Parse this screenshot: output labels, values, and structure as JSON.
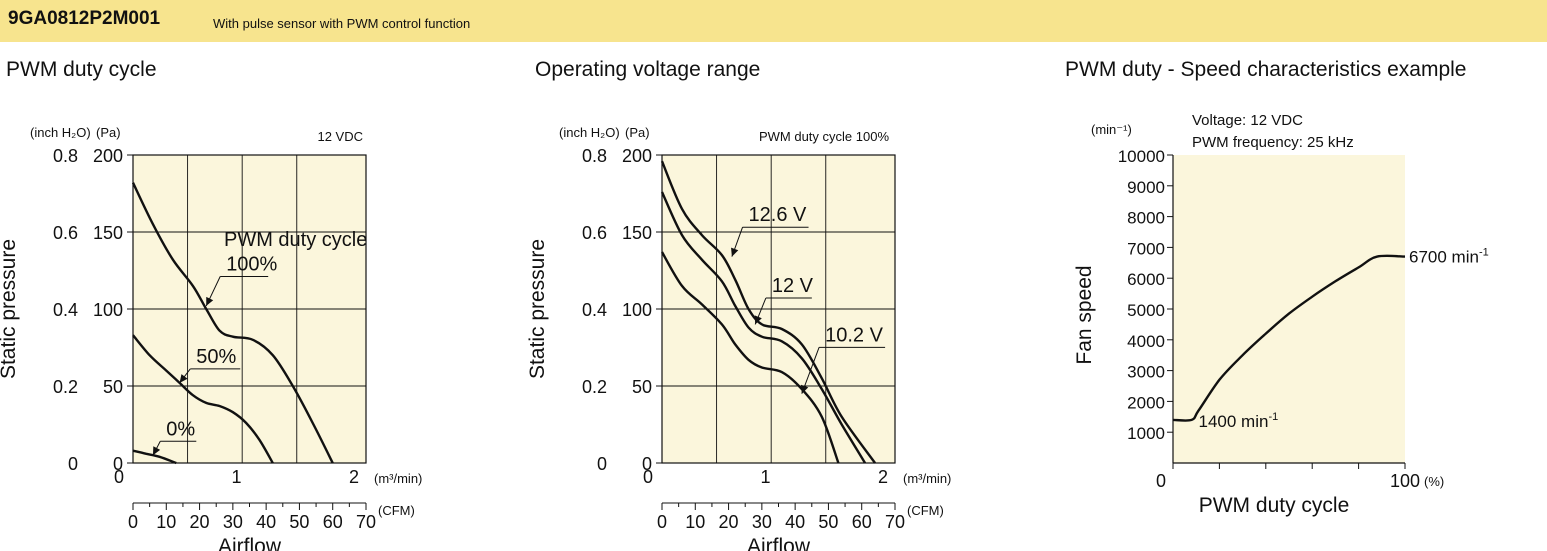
{
  "header": {
    "model": "9GA0812P2M001",
    "description": "With pulse sensor with PWM control function",
    "band_color": "#f7e48e"
  },
  "chart_data": [
    {
      "id": "pwm-duty-cycle",
      "type": "line",
      "title": "PWM duty cycle",
      "condition": "12 VDC",
      "xlabel": "Airflow",
      "ylabel": "Static pressure",
      "x_units": "(CFM)",
      "x2_units": "(m³/min)",
      "y_units": "(Pa)",
      "y2_units": "(inch H₂O)",
      "xlim": [
        0,
        70
      ],
      "ylim": [
        0,
        200
      ],
      "x_ticks": [
        "0",
        "10",
        "20",
        "30",
        "40",
        "50",
        "60",
        "70"
      ],
      "x2_ticks": [
        "0",
        "1",
        "2"
      ],
      "y_ticks": [
        "0",
        "50",
        "100",
        "150",
        "200"
      ],
      "y2_ticks": [
        "0",
        "0.2",
        "0.4",
        "0.6",
        "0.8"
      ],
      "legend_title": "PWM duty cycle",
      "plot_background": "#fbf6dc",
      "grid": true,
      "series": [
        {
          "name": "100%",
          "points": [
            [
              0,
              182
            ],
            [
              6,
              155
            ],
            [
              12,
              132
            ],
            [
              18,
              115
            ],
            [
              22,
              100
            ],
            [
              26,
              86
            ],
            [
              30,
              82
            ],
            [
              36,
              80
            ],
            [
              42,
              70
            ],
            [
              48,
              50
            ],
            [
              54,
              26
            ],
            [
              60,
              0
            ]
          ]
        },
        {
          "name": "50%",
          "points": [
            [
              0,
              83
            ],
            [
              5,
              70
            ],
            [
              10,
              60
            ],
            [
              14,
              52
            ],
            [
              18,
              44
            ],
            [
              22,
              39
            ],
            [
              26,
              37
            ],
            [
              30,
              33
            ],
            [
              34,
              26
            ],
            [
              38,
              15
            ],
            [
              42,
              0
            ]
          ]
        },
        {
          "name": "0%",
          "points": [
            [
              0,
              8
            ],
            [
              4,
              6
            ],
            [
              8,
              4
            ],
            [
              13,
              0
            ]
          ]
        }
      ]
    },
    {
      "id": "operating-voltage-range",
      "type": "line",
      "title": "Operating voltage range",
      "condition": "PWM duty cycle 100%",
      "xlabel": "Airflow",
      "ylabel": "Static pressure",
      "x_units": "(CFM)",
      "x2_units": "(m³/min)",
      "y_units": "(Pa)",
      "y2_units": "(inch H₂O)",
      "xlim": [
        0,
        70
      ],
      "ylim": [
        0,
        200
      ],
      "x_ticks": [
        "0",
        "10",
        "20",
        "30",
        "40",
        "50",
        "60",
        "70"
      ],
      "x2_ticks": [
        "0",
        "1",
        "2"
      ],
      "y_ticks": [
        "0",
        "50",
        "100",
        "150",
        "200"
      ],
      "y2_ticks": [
        "0",
        "0.2",
        "0.4",
        "0.6",
        "0.8"
      ],
      "plot_background": "#fbf6dc",
      "grid": true,
      "series": [
        {
          "name": "12.6 V",
          "points": [
            [
              0,
              196
            ],
            [
              6,
              165
            ],
            [
              12,
              148
            ],
            [
              18,
              135
            ],
            [
              22,
              119
            ],
            [
              26,
              100
            ],
            [
              30,
              90
            ],
            [
              36,
              87
            ],
            [
              42,
              77
            ],
            [
              48,
              55
            ],
            [
              54,
              30
            ],
            [
              64,
              0
            ]
          ]
        },
        {
          "name": "12 V",
          "points": [
            [
              0,
              176
            ],
            [
              6,
              148
            ],
            [
              12,
              132
            ],
            [
              18,
              118
            ],
            [
              22,
              102
            ],
            [
              26,
              88
            ],
            [
              30,
              82
            ],
            [
              36,
              79
            ],
            [
              42,
              68
            ],
            [
              48,
              48
            ],
            [
              54,
              25
            ],
            [
              61,
              0
            ]
          ]
        },
        {
          "name": "10.2 V",
          "points": [
            [
              0,
              137
            ],
            [
              6,
              115
            ],
            [
              12,
              103
            ],
            [
              18,
              90
            ],
            [
              22,
              77
            ],
            [
              26,
              67
            ],
            [
              30,
              62
            ],
            [
              36,
              59
            ],
            [
              42,
              48
            ],
            [
              48,
              30
            ],
            [
              53,
              0
            ]
          ]
        }
      ]
    },
    {
      "id": "pwm-duty-speed",
      "type": "line",
      "title": "PWM duty - Speed characteristics example",
      "notes": [
        "Voltage: 12 VDC",
        "PWM frequency: 25 kHz"
      ],
      "xlabel": "PWM duty cycle",
      "ylabel": "Fan speed",
      "x_units": "(%)",
      "y_units": "(min⁻¹)",
      "xlim": [
        0,
        100
      ],
      "ylim": [
        0,
        10000
      ],
      "x_ticks": [
        "0",
        "100"
      ],
      "y_ticks": [
        "1000",
        "2000",
        "3000",
        "4000",
        "5000",
        "6000",
        "7000",
        "8000",
        "9000",
        "10000"
      ],
      "plot_background": "#fbf6dc",
      "grid": false,
      "annotations": [
        {
          "text": "6700 min",
          "sup": "-1"
        },
        {
          "text": "1400 min",
          "sup": "-1"
        }
      ],
      "series": [
        {
          "points": [
            [
              0,
              1400
            ],
            [
              8,
              1400
            ],
            [
              11,
              1700
            ],
            [
              20,
              2700
            ],
            [
              30,
              3500
            ],
            [
              40,
              4200
            ],
            [
              50,
              4850
            ],
            [
              60,
              5400
            ],
            [
              70,
              5900
            ],
            [
              80,
              6350
            ],
            [
              88,
              6700
            ],
            [
              100,
              6700
            ]
          ]
        }
      ]
    }
  ]
}
